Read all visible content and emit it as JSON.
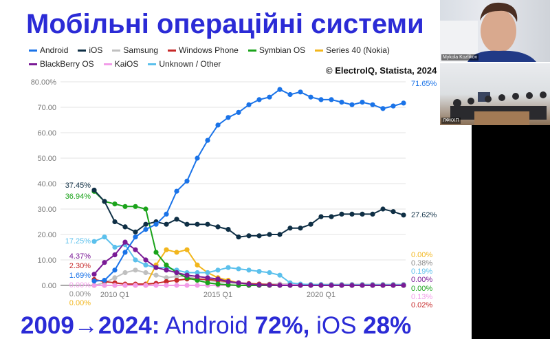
{
  "slide": {
    "title": "Мобільні операційні системи",
    "source": "© ElectroIQ, Statista, 2024",
    "bottom": {
      "years": "2009→2024:",
      "android_label": " Android ",
      "android_value": "72%",
      "sep": ",",
      "ios_label": " iOS ",
      "ios_value": "28%"
    }
  },
  "video_panel": {
    "participants": [
      {
        "name": "Mykola Kozlikov"
      },
      {
        "name": "ЛФКХП"
      }
    ]
  },
  "chart_data": {
    "type": "line",
    "title": "",
    "xlabel": "",
    "ylabel": "",
    "ylim": [
      0,
      80
    ],
    "yticks": [
      "0.00",
      "10.00",
      "20.00",
      "30.00",
      "40.00",
      "50.00",
      "60.00",
      "70.00",
      "80.00%"
    ],
    "ytick_values": [
      0,
      10,
      20,
      30,
      40,
      50,
      60,
      70,
      80
    ],
    "xticks": [
      {
        "label": "2010 Q1",
        "x": 2010.0
      },
      {
        "label": "2015 Q1",
        "x": 2015.0
      },
      {
        "label": "2020 Q1",
        "x": 2020.0
      }
    ],
    "xlim": [
      2008.75,
      2024.5
    ],
    "grid": true,
    "legend_position": "top",
    "x": [
      2009,
      2009.5,
      2010,
      2010.5,
      2011,
      2011.5,
      2012,
      2012.5,
      2013,
      2013.5,
      2014,
      2014.5,
      2015,
      2015.5,
      2016,
      2016.5,
      2017,
      2017.5,
      2018,
      2018.5,
      2019,
      2019.5,
      2020,
      2020.5,
      2021,
      2021.5,
      2022,
      2022.5,
      2023,
      2023.5,
      2024
    ],
    "series": [
      {
        "name": "Samsung",
        "color": "#c0c0c0",
        "start_label": "0.00%",
        "end_label": "0.38%",
        "values": [
          0,
          1,
          3,
          5,
          6,
          5,
          4,
          3,
          3.5,
          3.5,
          2.5,
          2,
          1.5,
          1,
          0.8,
          0.5,
          0.5,
          0.5,
          0.5,
          0.5,
          0.4,
          0.4,
          0.4,
          0.4,
          0.4,
          0.4,
          0.4,
          0.4,
          0.4,
          0.4,
          0.38
        ]
      },
      {
        "name": "Windows Phone",
        "color": "#c62828",
        "start_label": "2.30%",
        "end_label": "0.02%",
        "values": [
          2.3,
          1.5,
          1,
          0.5,
          0.5,
          0.5,
          0.8,
          1.5,
          2,
          2.5,
          2.5,
          2.3,
          2,
          1.5,
          1,
          0.7,
          0.5,
          0.3,
          0.2,
          0.1,
          0.05,
          0.05,
          0.03,
          0.03,
          0.02,
          0.02,
          0.02,
          0.02,
          0.02,
          0.02,
          0.02
        ]
      },
      {
        "name": "Series 40 (Nokia)",
        "color": "#f2b61c",
        "start_label": "0.00%",
        "end_label": "0.00%",
        "values": [
          0,
          0,
          0,
          0,
          0,
          0,
          8,
          14,
          13,
          14,
          8,
          5,
          3,
          2,
          1,
          0.5,
          0.2,
          0,
          0,
          0,
          0,
          0,
          0,
          0,
          0,
          0,
          0,
          0,
          0,
          0,
          0
        ]
      },
      {
        "name": "KaiOS",
        "color": "#f29ce8",
        "start_label": "0.00%",
        "end_label": "0.13%",
        "values": [
          0,
          0,
          0,
          0,
          0,
          0,
          0,
          0,
          0,
          0,
          0,
          0,
          0,
          0,
          0,
          0,
          0,
          0,
          0.2,
          0.3,
          0.3,
          0.2,
          0.2,
          0.2,
          0.2,
          0.2,
          0.15,
          0.15,
          0.13,
          0.13,
          0.13
        ]
      },
      {
        "name": "Unknown / Other",
        "color": "#5bc0ec",
        "start_label": "17.25%",
        "end_label": "0.19%",
        "values": [
          17.25,
          19,
          15,
          16,
          10,
          8,
          7,
          7,
          6,
          5,
          5,
          5,
          6,
          7,
          6.5,
          6,
          5.5,
          5,
          4,
          1,
          0.5,
          0.3,
          0.3,
          0.2,
          0.2,
          0.2,
          0.2,
          0.2,
          0.2,
          0.2,
          0.19
        ]
      },
      {
        "name": "Symbian OS",
        "color": "#1aa31a",
        "start_label": "36.94%",
        "end_label": "0.00%",
        "values": [
          36.94,
          33,
          32,
          31,
          31,
          30,
          13,
          8,
          5,
          3,
          2,
          1,
          0.5,
          0.2,
          0,
          0,
          0,
          0,
          0,
          0,
          0,
          0,
          0,
          0,
          0,
          0,
          0,
          0,
          0,
          0,
          0
        ]
      },
      {
        "name": "BlackBerry OS",
        "color": "#7a1a96",
        "start_label": "4.37%",
        "end_label": "0.00%",
        "values": [
          4.37,
          9,
          12,
          17,
          14,
          10,
          7,
          6,
          5,
          4,
          3.5,
          3,
          2.5,
          1.5,
          1,
          0.5,
          0.2,
          0.1,
          0,
          0,
          0,
          0,
          0,
          0,
          0,
          0,
          0,
          0,
          0,
          0,
          0
        ]
      },
      {
        "name": "iOS",
        "color": "#0f2f45",
        "start_label": "37.45%",
        "end_label": "27.62%",
        "values": [
          37.45,
          33,
          25,
          23,
          21,
          24,
          25,
          24,
          26,
          24,
          24,
          24,
          23,
          22,
          19,
          19.5,
          19.5,
          20,
          20,
          22.5,
          22.5,
          24,
          27,
          27,
          28,
          28,
          28,
          28,
          30,
          29,
          27.62
        ]
      },
      {
        "name": "Android",
        "color": "#1a73e8",
        "start_label": "1.69%",
        "end_label": "71.65%",
        "values": [
          1.69,
          2,
          6,
          13,
          19,
          22,
          24,
          28,
          37,
          41,
          50,
          57,
          63,
          66,
          68,
          71,
          73,
          74,
          77,
          75,
          76,
          74,
          73,
          73,
          72,
          71,
          72,
          71,
          69.5,
          70.5,
          71.65
        ]
      }
    ],
    "legend_order": [
      "Android",
      "iOS",
      "Samsung",
      "Windows Phone",
      "Symbian OS",
      "Series 40 (Nokia)",
      "BlackBerry OS",
      "KaiOS",
      "Unknown / Other"
    ]
  }
}
